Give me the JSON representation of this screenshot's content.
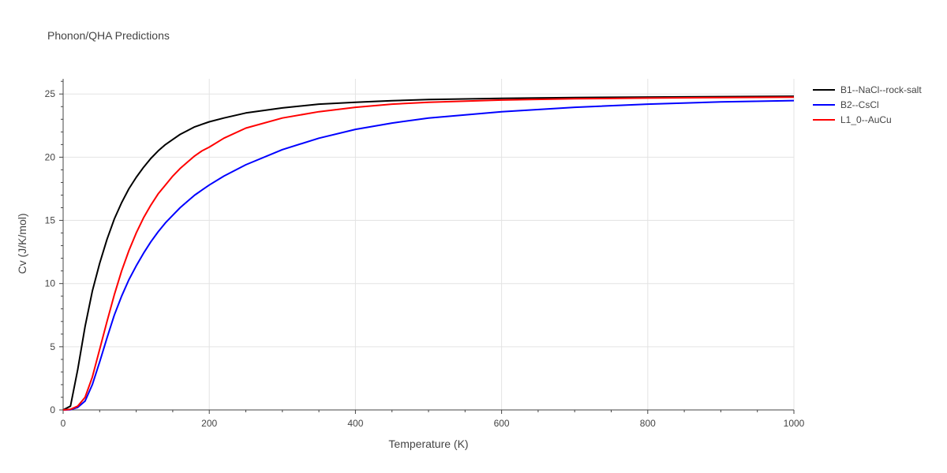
{
  "chart_data": {
    "type": "line",
    "title": "Phonon/QHA Predictions",
    "xlabel": "Temperature (K)",
    "ylabel": "Cv (J/K/mol)",
    "xlim": [
      0,
      1000
    ],
    "ylim": [
      0,
      26.2
    ],
    "xticks": [
      0,
      200,
      400,
      600,
      800,
      1000
    ],
    "yticks": [
      0,
      5,
      10,
      15,
      20,
      25
    ],
    "grid": true,
    "legend_position": "top-right",
    "series": [
      {
        "name": "B1--NaCl--rock-salt",
        "color": "#000000",
        "x": [
          0,
          10,
          20,
          30,
          40,
          50,
          60,
          70,
          80,
          90,
          100,
          110,
          120,
          130,
          140,
          150,
          160,
          170,
          180,
          190,
          200,
          220,
          250,
          300,
          350,
          400,
          450,
          500,
          600,
          700,
          800,
          900,
          1000
        ],
        "y": [
          0,
          0.3,
          3.2,
          6.6,
          9.4,
          11.6,
          13.5,
          15.1,
          16.4,
          17.5,
          18.4,
          19.2,
          19.9,
          20.5,
          21.0,
          21.4,
          21.8,
          22.1,
          22.4,
          22.6,
          22.8,
          23.1,
          23.5,
          23.9,
          24.2,
          24.35,
          24.47,
          24.56,
          24.66,
          24.72,
          24.76,
          24.79,
          24.82
        ]
      },
      {
        "name": "B2--CsCl",
        "color": "#0000ff",
        "x": [
          0,
          10,
          20,
          30,
          40,
          50,
          60,
          70,
          80,
          90,
          100,
          110,
          120,
          130,
          140,
          150,
          160,
          170,
          180,
          190,
          200,
          220,
          250,
          300,
          350,
          400,
          450,
          500,
          600,
          700,
          800,
          900,
          1000
        ],
        "y": [
          0,
          0.02,
          0.2,
          0.7,
          2.0,
          3.8,
          5.7,
          7.5,
          9.0,
          10.3,
          11.4,
          12.4,
          13.3,
          14.1,
          14.8,
          15.4,
          16.0,
          16.5,
          17.0,
          17.4,
          17.8,
          18.5,
          19.4,
          20.6,
          21.5,
          22.2,
          22.7,
          23.1,
          23.6,
          23.95,
          24.2,
          24.37,
          24.48
        ]
      },
      {
        "name": "L1_0--AuCu",
        "color": "#ff0000",
        "x": [
          0,
          10,
          20,
          30,
          40,
          50,
          60,
          70,
          80,
          90,
          100,
          110,
          120,
          130,
          140,
          150,
          160,
          170,
          180,
          190,
          200,
          220,
          250,
          300,
          350,
          400,
          450,
          500,
          600,
          700,
          800,
          900,
          1000
        ],
        "y": [
          0,
          0.05,
          0.3,
          1.0,
          2.6,
          4.8,
          7.0,
          9.1,
          11.0,
          12.6,
          14.0,
          15.2,
          16.2,
          17.1,
          17.8,
          18.5,
          19.1,
          19.6,
          20.1,
          20.5,
          20.8,
          21.5,
          22.3,
          23.1,
          23.6,
          23.95,
          24.2,
          24.35,
          24.52,
          24.62,
          24.68,
          24.72,
          24.75
        ]
      }
    ]
  }
}
